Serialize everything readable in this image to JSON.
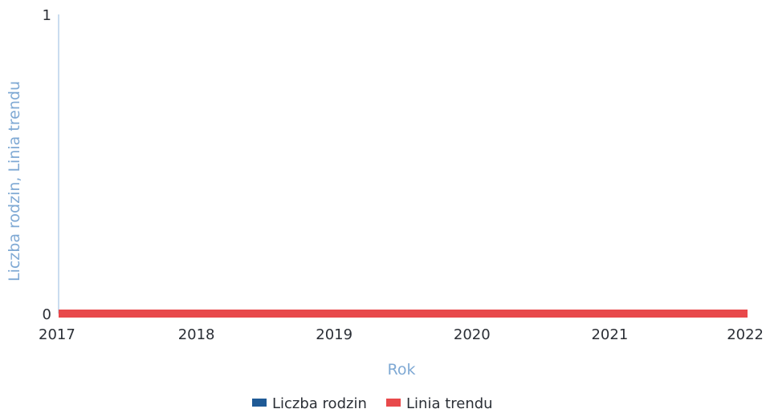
{
  "chart_data": {
    "type": "line",
    "x": [
      2017,
      2018,
      2019,
      2020,
      2021,
      2022
    ],
    "series": [
      {
        "name": "Liczba rodzin",
        "values": [
          0,
          0,
          0,
          0,
          0,
          0
        ],
        "color": "#1f5a96"
      },
      {
        "name": "Linia trendu",
        "values": [
          0,
          0,
          0,
          0,
          0,
          0
        ],
        "color": "#e8494b"
      }
    ],
    "xlabel": "Rok",
    "ylabel": "Liczba rodzin, Linia trendu",
    "xlim": [
      2017,
      2022
    ],
    "ylim": [
      0,
      1
    ],
    "yticks": [
      "0",
      "1"
    ],
    "xticks": [
      "2017",
      "2018",
      "2019",
      "2020",
      "2021",
      "2022"
    ],
    "grid": false,
    "legend_position": "bottom-center",
    "axis_color": "#b8d0ea"
  }
}
